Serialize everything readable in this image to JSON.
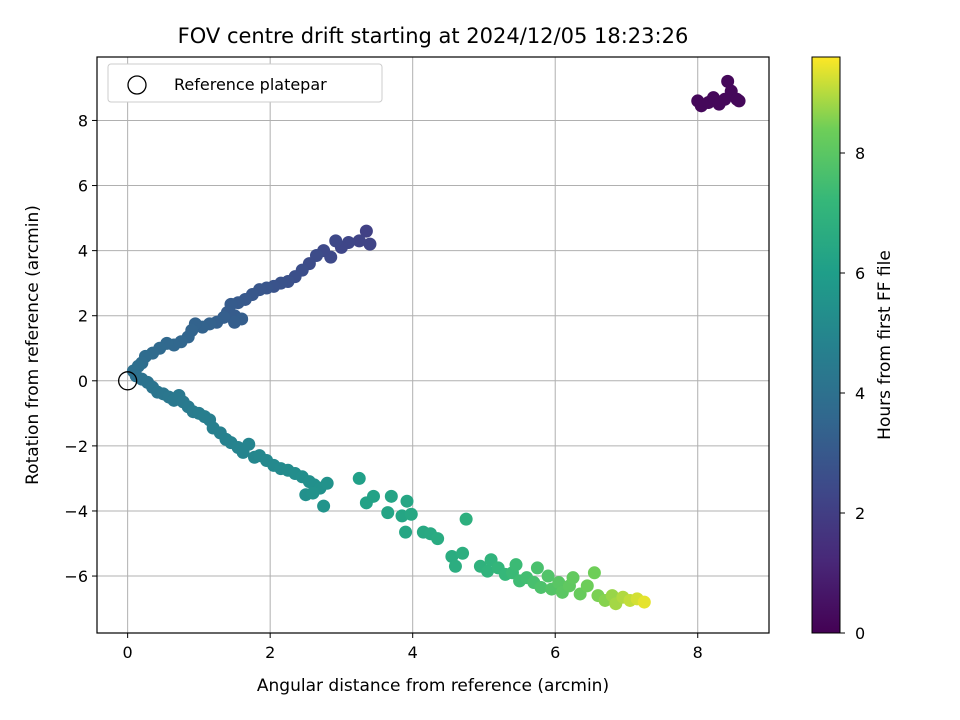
{
  "chart_data": {
    "type": "scatter",
    "title": "FOV centre drift starting at 2024/12/05 18:23:26",
    "xlabel": "Angular distance from reference (arcmin)",
    "ylabel": "Rotation from reference (arcmin)",
    "xlim": [
      -0.43,
      9.0
    ],
    "ylim": [
      -7.75,
      9.95
    ],
    "xticks": [
      0,
      2,
      4,
      6,
      8
    ],
    "yticks": [
      -6,
      -4,
      -2,
      0,
      2,
      4,
      6,
      8
    ],
    "grid": true,
    "legend": {
      "placement": "top-left",
      "entries": [
        "Reference platepar"
      ]
    },
    "reference_point": {
      "x": 0,
      "y": 0
    },
    "colorbar": {
      "label": "Hours from first FF file",
      "colormap": "viridis",
      "range": [
        0,
        9.6
      ],
      "ticks": [
        0,
        2,
        4,
        6,
        8
      ]
    },
    "series": [
      {
        "points": [
          [
            8.0,
            8.6,
            0.2
          ],
          [
            8.05,
            8.45,
            0.2
          ],
          [
            8.15,
            8.55,
            0.2
          ],
          [
            8.22,
            8.7,
            0.2
          ],
          [
            8.3,
            8.5,
            0.2
          ],
          [
            8.38,
            8.65,
            0.2
          ],
          [
            8.42,
            9.2,
            0.2
          ],
          [
            8.47,
            8.9,
            0.2
          ],
          [
            8.55,
            8.65,
            0.2
          ],
          [
            8.58,
            8.6,
            0.2
          ],
          [
            3.35,
            4.6,
            2.1
          ],
          [
            3.4,
            4.2,
            2.2
          ],
          [
            3.25,
            4.3,
            2.2
          ],
          [
            3.1,
            4.25,
            2.3
          ],
          [
            3.0,
            4.1,
            2.3
          ],
          [
            2.92,
            4.3,
            2.35
          ],
          [
            2.85,
            3.8,
            2.4
          ],
          [
            2.75,
            4.0,
            2.4
          ],
          [
            2.65,
            3.85,
            2.5
          ],
          [
            2.55,
            3.6,
            2.5
          ],
          [
            2.45,
            3.4,
            2.6
          ],
          [
            2.35,
            3.2,
            2.65
          ],
          [
            2.25,
            3.05,
            2.7
          ],
          [
            2.15,
            3.0,
            2.75
          ],
          [
            2.05,
            2.9,
            2.8
          ],
          [
            1.95,
            2.85,
            2.85
          ],
          [
            1.85,
            2.8,
            2.9
          ],
          [
            1.75,
            2.65,
            2.95
          ],
          [
            1.65,
            2.5,
            3.0
          ],
          [
            1.55,
            2.4,
            3.05
          ],
          [
            1.45,
            2.35,
            3.1
          ],
          [
            1.4,
            2.1,
            3.15
          ],
          [
            1.5,
            2.0,
            3.15
          ],
          [
            1.6,
            1.9,
            3.2
          ],
          [
            1.5,
            1.8,
            3.2
          ],
          [
            1.35,
            1.95,
            3.25
          ],
          [
            1.25,
            1.8,
            3.3
          ],
          [
            1.15,
            1.75,
            3.35
          ],
          [
            1.05,
            1.65,
            3.4
          ],
          [
            0.95,
            1.75,
            3.4
          ],
          [
            0.9,
            1.55,
            3.45
          ],
          [
            0.85,
            1.35,
            3.5
          ],
          [
            0.75,
            1.2,
            3.55
          ],
          [
            0.65,
            1.1,
            3.6
          ],
          [
            0.55,
            1.15,
            3.65
          ],
          [
            0.45,
            1.0,
            3.7
          ],
          [
            0.35,
            0.85,
            3.75
          ],
          [
            0.25,
            0.75,
            3.8
          ],
          [
            0.2,
            0.55,
            3.85
          ],
          [
            0.15,
            0.45,
            3.9
          ],
          [
            0.08,
            0.3,
            3.95
          ],
          [
            0.12,
            0.15,
            4.0
          ],
          [
            0.2,
            0.05,
            4.05
          ],
          [
            0.28,
            -0.05,
            4.1
          ],
          [
            0.35,
            -0.2,
            4.15
          ],
          [
            0.42,
            -0.35,
            4.2
          ],
          [
            0.5,
            -0.4,
            4.25
          ],
          [
            0.58,
            -0.5,
            4.3
          ],
          [
            0.65,
            -0.6,
            4.35
          ],
          [
            0.72,
            -0.45,
            4.35
          ],
          [
            0.78,
            -0.65,
            4.4
          ],
          [
            0.85,
            -0.8,
            4.45
          ],
          [
            0.92,
            -0.95,
            4.5
          ],
          [
            1.0,
            -1.0,
            4.55
          ],
          [
            1.08,
            -1.1,
            4.6
          ],
          [
            1.15,
            -1.2,
            4.6
          ],
          [
            1.2,
            -1.45,
            4.65
          ],
          [
            1.3,
            -1.6,
            4.7
          ],
          [
            1.38,
            -1.8,
            4.75
          ],
          [
            1.45,
            -1.9,
            4.8
          ],
          [
            1.55,
            -2.05,
            4.85
          ],
          [
            1.62,
            -2.2,
            4.9
          ],
          [
            1.7,
            -1.95,
            4.9
          ],
          [
            1.78,
            -2.35,
            4.95
          ],
          [
            1.85,
            -2.3,
            5.0
          ],
          [
            1.95,
            -2.45,
            5.05
          ],
          [
            2.05,
            -2.6,
            5.1
          ],
          [
            2.15,
            -2.7,
            5.15
          ],
          [
            2.25,
            -2.75,
            5.2
          ],
          [
            2.35,
            -2.85,
            5.25
          ],
          [
            2.45,
            -2.95,
            5.3
          ],
          [
            2.55,
            -3.1,
            5.35
          ],
          [
            2.5,
            -3.5,
            5.4
          ],
          [
            2.62,
            -3.2,
            5.4
          ],
          [
            2.7,
            -3.3,
            5.45
          ],
          [
            2.8,
            -3.15,
            5.5
          ],
          [
            2.75,
            -3.85,
            5.55
          ],
          [
            2.6,
            -3.45,
            5.5
          ],
          [
            3.25,
            -3.0,
            6.1
          ],
          [
            3.35,
            -3.75,
            6.2
          ],
          [
            3.45,
            -3.55,
            6.2
          ],
          [
            3.65,
            -4.05,
            6.3
          ],
          [
            3.7,
            -3.55,
            6.3
          ],
          [
            3.85,
            -4.15,
            6.35
          ],
          [
            3.9,
            -4.65,
            6.4
          ],
          [
            3.92,
            -3.7,
            6.4
          ],
          [
            3.98,
            -4.1,
            6.45
          ],
          [
            4.15,
            -4.65,
            6.5
          ],
          [
            4.25,
            -4.7,
            6.55
          ],
          [
            4.35,
            -4.85,
            6.6
          ],
          [
            4.55,
            -5.4,
            6.65
          ],
          [
            4.6,
            -5.7,
            6.7
          ],
          [
            4.7,
            -5.3,
            6.75
          ],
          [
            4.75,
            -4.25,
            6.8
          ],
          [
            4.95,
            -5.7,
            6.9
          ],
          [
            5.05,
            -5.85,
            7.0
          ],
          [
            5.1,
            -5.5,
            7.0
          ],
          [
            5.2,
            -5.75,
            7.1
          ],
          [
            5.3,
            -5.95,
            7.2
          ],
          [
            5.4,
            -5.9,
            7.3
          ],
          [
            5.45,
            -5.65,
            7.35
          ],
          [
            5.5,
            -6.15,
            7.4
          ],
          [
            5.6,
            -6.05,
            7.5
          ],
          [
            5.7,
            -6.2,
            7.6
          ],
          [
            5.75,
            -5.75,
            7.65
          ],
          [
            5.8,
            -6.35,
            7.7
          ],
          [
            5.9,
            -6.0,
            7.8
          ],
          [
            5.95,
            -6.4,
            7.85
          ],
          [
            6.05,
            -6.2,
            7.95
          ],
          [
            6.1,
            -6.5,
            8.0
          ],
          [
            6.2,
            -6.3,
            8.1
          ],
          [
            6.25,
            -6.05,
            8.15
          ],
          [
            6.35,
            -6.55,
            8.25
          ],
          [
            6.45,
            -6.3,
            8.35
          ],
          [
            6.55,
            -5.9,
            8.4
          ],
          [
            6.6,
            -6.6,
            8.5
          ],
          [
            6.7,
            -6.75,
            8.6
          ],
          [
            6.8,
            -6.6,
            8.75
          ],
          [
            6.85,
            -6.85,
            8.85
          ],
          [
            6.95,
            -6.65,
            8.95
          ],
          [
            7.05,
            -6.75,
            9.1
          ],
          [
            7.15,
            -6.7,
            9.25
          ],
          [
            7.25,
            -6.8,
            9.4
          ]
        ]
      }
    ]
  }
}
